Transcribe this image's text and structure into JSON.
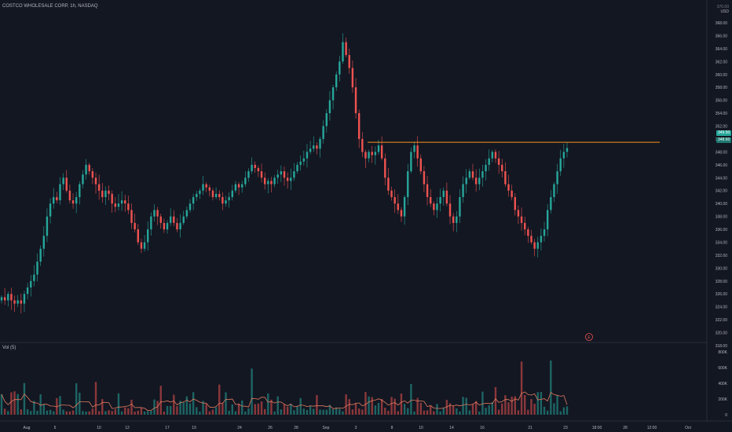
{
  "header": {
    "title": "COSTCO WHOLESALE CORP, 1h, NASDAQ",
    "currency": "USD",
    "currency_above": "370.00"
  },
  "volume": {
    "label": "Vol (5)",
    "axis": [
      {
        "value": 0,
        "label": "0"
      },
      {
        "value": 200000,
        "label": "200K"
      },
      {
        "value": 400000,
        "label": "400K"
      },
      {
        "value": 600000,
        "label": "600K"
      },
      {
        "value": 800000,
        "label": "800K"
      }
    ]
  },
  "price_axis": {
    "min": 318,
    "max": 368,
    "ticks": [
      "368.00",
      "366.00",
      "364.00",
      "362.00",
      "360.00",
      "358.00",
      "356.00",
      "354.00",
      "352.00",
      "350.00",
      "348.00",
      "346.00",
      "344.00",
      "342.00",
      "340.00",
      "338.00",
      "336.00",
      "334.00",
      "332.00",
      "330.00",
      "328.00",
      "326.00",
      "324.00",
      "322.00",
      "320.00",
      "318.00"
    ]
  },
  "price_tags": {
    "resistance": "349.50",
    "last": "348.60"
  },
  "x_axis": [
    "Aug",
    "5",
    "10",
    "12",
    "17",
    "19",
    "24",
    "26",
    "28",
    "Sep",
    "3",
    "8",
    "10",
    "14",
    "16",
    "21",
    "23",
    "18:00",
    "28",
    "12:00",
    "Oct"
  ],
  "event_marker": "E",
  "colors": {
    "background": "#131722",
    "up": "#26a69a",
    "down": "#ef5350",
    "resistance": "#f7931a",
    "grid": "#2a2e39",
    "text": "#b2b5be"
  },
  "chart_data": {
    "type": "candlestick",
    "title": "COSTCO WHOLESALE CORP, 1h, NASDAQ",
    "y_unit": "USD",
    "ylim": [
      318,
      368
    ],
    "resistance_level": 349.5,
    "last_price": 348.6,
    "closes": [
      325.5,
      325,
      326,
      325,
      324.5,
      325,
      324.5,
      326,
      327,
      328,
      329,
      331,
      333,
      335,
      338,
      340,
      341,
      340.5,
      343,
      344,
      342,
      340.5,
      340,
      341,
      343,
      344.5,
      346,
      345,
      344,
      343,
      342,
      341,
      342,
      341.5,
      340,
      339.5,
      340,
      340.5,
      340,
      339,
      337,
      336,
      334,
      333,
      334,
      336,
      338,
      339,
      338,
      337,
      336,
      337,
      338,
      337,
      336,
      337,
      338,
      339,
      340,
      341,
      341.5,
      342,
      343,
      342.5,
      342,
      341,
      341.5,
      341,
      340,
      340.5,
      341,
      342,
      343,
      342.5,
      343,
      344,
      345,
      346,
      345.5,
      345,
      344,
      343,
      343.5,
      343,
      344,
      344.5,
      345,
      344,
      343.5,
      344,
      345,
      346,
      346.5,
      347,
      348,
      348.5,
      349,
      348.5,
      350,
      352,
      354,
      356,
      358,
      360,
      362,
      365,
      363,
      361,
      358,
      354,
      350,
      348,
      347,
      348,
      347.5,
      348,
      349,
      347,
      344,
      342,
      341,
      340,
      339,
      338,
      341,
      345,
      348,
      349,
      347,
      345,
      343,
      341,
      340,
      339,
      340,
      341,
      342,
      340,
      338,
      337,
      338,
      341,
      343,
      344,
      345,
      344,
      343,
      344,
      345,
      346,
      347,
      348,
      347,
      346,
      345,
      343,
      342,
      341,
      339,
      338,
      337,
      336,
      335,
      334,
      333,
      334,
      335,
      336,
      339,
      341,
      343,
      345,
      347,
      348,
      348.6
    ]
  }
}
